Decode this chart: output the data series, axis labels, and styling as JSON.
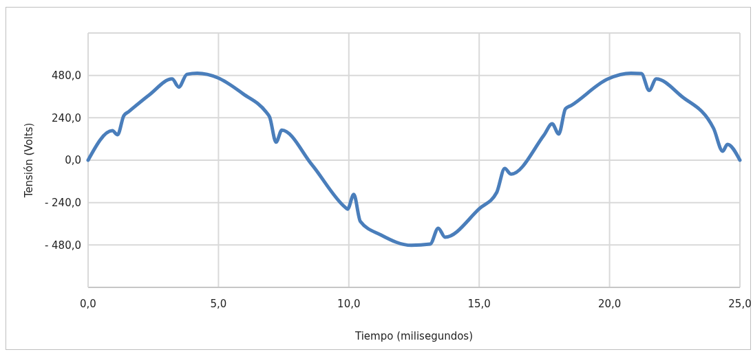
{
  "chart_data": {
    "type": "line",
    "xlabel": "Tiempo (milisegundos)",
    "ylabel": "Tensión (Volts)",
    "xlim": [
      0,
      25
    ],
    "ylim": [
      -720,
      720
    ],
    "xticks": [
      {
        "value": 0,
        "label": "0,0"
      },
      {
        "value": 5,
        "label": "5,0"
      },
      {
        "value": 10,
        "label": "10,0"
      },
      {
        "value": 15,
        "label": "15,0"
      },
      {
        "value": 20,
        "label": "20,0"
      },
      {
        "value": 25,
        "label": "25,0"
      }
    ],
    "yticks": [
      {
        "value": -720,
        "label": null
      },
      {
        "value": -480,
        "label": "- 480,0"
      },
      {
        "value": -240,
        "label": "- 240,0"
      },
      {
        "value": 0,
        "label": "0,0"
      },
      {
        "value": 240,
        "label": "240,0"
      },
      {
        "value": 480,
        "label": "480,0"
      },
      {
        "value": 720,
        "label": null
      }
    ],
    "grid": true,
    "marker": "none",
    "line_style": "solid",
    "series": [
      {
        "color": "#4a7ebb",
        "x": [
          0,
          0.93,
          1.13,
          1.37,
          1.55,
          2.34,
          3.22,
          3.48,
          3.79,
          4.19,
          4.98,
          5.95,
          6.83,
          6.96,
          7.21,
          7.43,
          8.59,
          9.87,
          9.95,
          10.19,
          10.44,
          11.23,
          12.4,
          13.12,
          13.43,
          13.69,
          15.01,
          15.67,
          15.98,
          16.22,
          17.48,
          17.8,
          18.05,
          18.31,
          18.53,
          19.94,
          20.82,
          21.22,
          21.52,
          21.79,
          22.76,
          23.99,
          24.34,
          24.52,
          25
        ],
        "values": [
          0,
          167,
          144,
          252,
          274,
          369,
          460,
          414,
          486,
          492,
          466,
          375,
          272,
          245,
          102,
          170,
          -27,
          -268,
          -277,
          -194,
          -346,
          -423,
          -482,
          -475,
          -385,
          -436,
          -274,
          -183,
          -47,
          -79,
          141,
          206,
          148,
          291,
          310,
          460,
          492,
          490,
          395,
          460,
          362,
          180,
          51,
          90,
          0
        ]
      }
    ]
  }
}
